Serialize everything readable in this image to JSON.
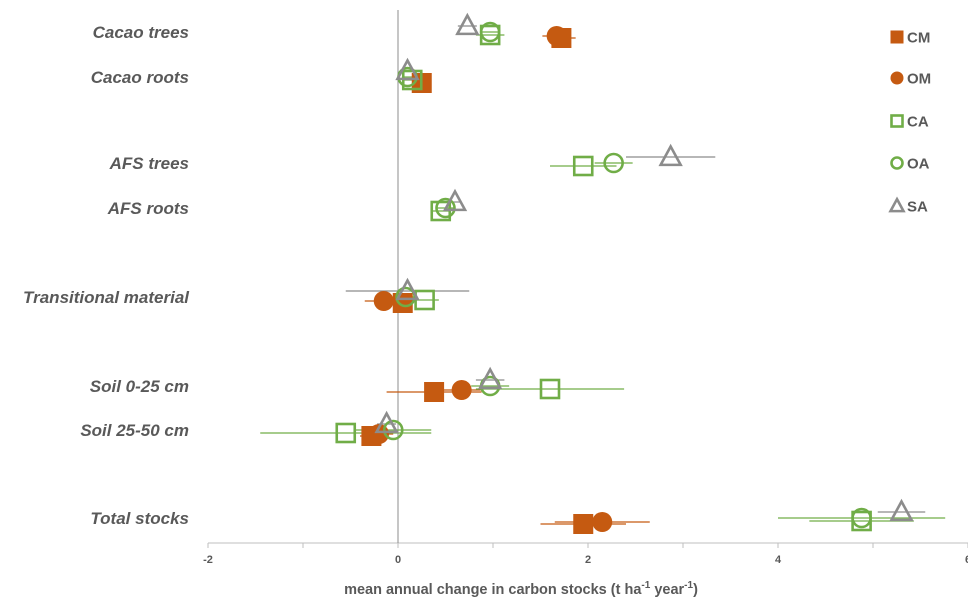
{
  "chart_data": {
    "type": "scatter",
    "orientation": "horizontal",
    "xlabel_main": "mean annual change in carbon stocks (t ha",
    "xlabel_sup1": "-1",
    "xlabel_mid": " year",
    "xlabel_sup2": "-1",
    "xlabel_end": ")",
    "xlim": [
      -2,
      6
    ],
    "x_ticks": [
      "-2",
      "0",
      "2",
      "4",
      "6"
    ],
    "categories": [
      "Cacao trees",
      "Cacao roots",
      "AFS trees",
      "AFS roots",
      "Transitional material",
      "Soil 0-25 cm",
      "Soil 25-50 cm",
      "Total stocks"
    ],
    "legend_position": "right",
    "series": [
      {
        "name": "CM",
        "marker": "filled-square",
        "color": "#C55A11",
        "points": [
          {
            "category": "Cacao trees",
            "x": 1.72,
            "err": 0.15
          },
          {
            "category": "Cacao roots",
            "x": 0.25,
            "err": 0.04
          },
          {
            "category": "Transitional material",
            "x": 0.05,
            "err": 0.1
          },
          {
            "category": "Soil 0-25 cm",
            "x": 0.38,
            "err": 0.5
          },
          {
            "category": "Soil 25-50 cm",
            "x": -0.28,
            "err": 0.12
          },
          {
            "category": "Total stocks",
            "x": 1.95,
            "err": 0.45
          }
        ]
      },
      {
        "name": "OM",
        "marker": "filled-circle",
        "color": "#C55A11",
        "points": [
          {
            "category": "Cacao trees",
            "x": 1.67,
            "err": 0.15
          },
          {
            "category": "Transitional material",
            "x": -0.15,
            "err": 0.2
          },
          {
            "category": "Soil 0-25 cm",
            "x": 0.67,
            "err": 0.2
          },
          {
            "category": "Soil 25-50 cm",
            "x": -0.2,
            "err": 0.15
          },
          {
            "category": "Total stocks",
            "x": 2.15,
            "err": 0.5
          }
        ]
      },
      {
        "name": "CA",
        "marker": "open-square",
        "color": "#70AD47",
        "points": [
          {
            "category": "Cacao trees",
            "x": 0.97,
            "err": 0.15
          },
          {
            "category": "Cacao roots",
            "x": 0.15,
            "err": 0.1
          },
          {
            "category": "AFS trees",
            "x": 1.95,
            "err": 0.35
          },
          {
            "category": "AFS roots",
            "x": 0.45,
            "err": 0.1
          },
          {
            "category": "Transitional material",
            "x": 0.28,
            "err": 0.15
          },
          {
            "category": "Soil 0-25 cm",
            "x": 1.6,
            "err": 0.78
          },
          {
            "category": "Soil 25-50 cm",
            "x": -0.55,
            "err": 0.9
          },
          {
            "category": "Total stocks",
            "x": 4.88,
            "err": 0.55
          }
        ]
      },
      {
        "name": "OA",
        "marker": "open-circle",
        "color": "#70AD47",
        "points": [
          {
            "category": "Cacao trees",
            "x": 0.97,
            "err": 0.1
          },
          {
            "category": "Cacao roots",
            "x": 0.1,
            "err": 0.05
          },
          {
            "category": "AFS trees",
            "x": 2.27,
            "err": 0.2
          },
          {
            "category": "AFS roots",
            "x": 0.5,
            "err": 0.1
          },
          {
            "category": "Transitional material",
            "x": 0.08,
            "err": 0.1
          },
          {
            "category": "Soil 0-25 cm",
            "x": 0.97,
            "err": 0.2
          },
          {
            "category": "Soil 25-50 cm",
            "x": -0.05,
            "err": 0.4
          },
          {
            "category": "Total stocks",
            "x": 4.88,
            "err": 0.88
          }
        ]
      },
      {
        "name": "SA",
        "marker": "open-triangle",
        "color": "#8C8C8C",
        "points": [
          {
            "category": "Cacao trees",
            "x": 0.73,
            "err": 0.1
          },
          {
            "category": "Cacao roots",
            "x": 0.1,
            "err": 0.05
          },
          {
            "category": "AFS trees",
            "x": 2.87,
            "err": 0.47
          },
          {
            "category": "AFS roots",
            "x": 0.6,
            "err": 0.05
          },
          {
            "category": "Transitional material",
            "x": 0.1,
            "err": 0.65
          },
          {
            "category": "Soil 0-25 cm",
            "x": 0.97,
            "err": 0.15
          },
          {
            "category": "Soil 25-50 cm",
            "x": -0.12,
            "err": 0.1
          },
          {
            "category": "Total stocks",
            "x": 5.3,
            "err": 0.25
          }
        ]
      }
    ]
  }
}
